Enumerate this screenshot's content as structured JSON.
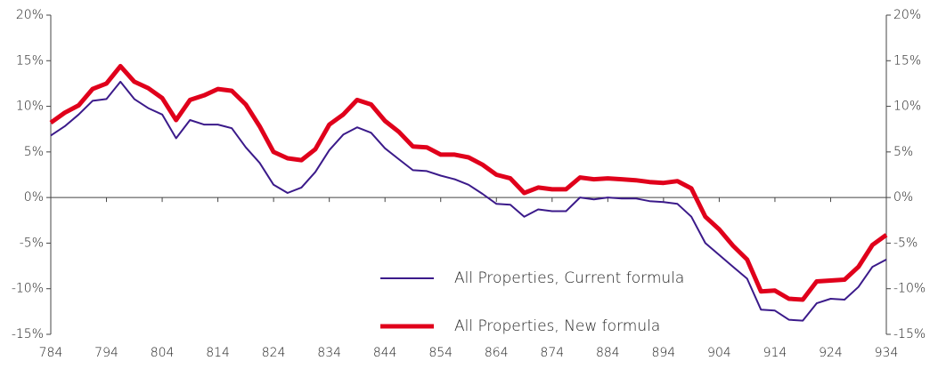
{
  "chart_data": {
    "type": "line",
    "x": [
      784,
      786.5,
      789,
      791.5,
      794,
      796.5,
      799,
      801.5,
      804,
      806.5,
      809,
      811.5,
      814,
      816.5,
      819,
      821.5,
      824,
      826.5,
      829,
      831.5,
      834,
      836.5,
      839,
      841.5,
      844,
      846.5,
      849,
      851.5,
      854,
      856.5,
      859,
      861.5,
      864,
      866.5,
      869,
      871.5,
      874,
      876.5,
      879,
      881.5,
      884,
      886.5,
      889,
      891.5,
      894,
      896.5,
      899,
      901.5,
      904,
      906.5,
      909,
      911.5,
      914,
      916.5,
      919,
      921.5,
      924,
      926.5,
      929,
      931.5,
      934
    ],
    "series": [
      {
        "name": "All Properties, Current formula",
        "color": "#3b1a8a",
        "values": [
          6.8,
          7.8,
          9.1,
          10.6,
          10.8,
          12.7,
          10.8,
          9.8,
          9.1,
          6.5,
          8.5,
          8.0,
          8.0,
          7.6,
          5.5,
          3.8,
          1.4,
          0.5,
          1.1,
          2.8,
          5.2,
          6.9,
          7.7,
          7.1,
          5.4,
          4.2,
          3.0,
          2.9,
          2.4,
          2.0,
          1.4,
          0.4,
          -0.7,
          -0.8,
          -2.1,
          -1.3,
          -1.5,
          -1.5,
          0.0,
          -0.2,
          0.0,
          -0.1,
          -0.1,
          -0.4,
          -0.5,
          -0.7,
          -2.1,
          -5.0,
          -6.3,
          -7.6,
          -8.9,
          -12.3,
          -12.4,
          -13.4,
          -13.5,
          -11.6,
          -11.1,
          -11.2,
          -9.8,
          -7.6,
          -6.8
        ]
      },
      {
        "name": "All Properties, New formula",
        "color": "#e0001b",
        "values": [
          8.2,
          9.3,
          10.1,
          11.9,
          12.5,
          14.4,
          12.7,
          12.0,
          10.9,
          8.5,
          10.7,
          11.2,
          11.9,
          11.7,
          10.2,
          7.8,
          5.0,
          4.3,
          4.1,
          5.3,
          8.0,
          9.1,
          10.7,
          10.2,
          8.4,
          7.2,
          5.6,
          5.5,
          4.7,
          4.7,
          4.4,
          3.6,
          2.5,
          2.1,
          0.5,
          1.1,
          0.9,
          0.9,
          2.2,
          2.0,
          2.1,
          2.0,
          1.9,
          1.7,
          1.6,
          1.8,
          1.0,
          -2.1,
          -3.5,
          -5.3,
          -6.8,
          -10.3,
          -10.2,
          -11.1,
          -11.2,
          -9.2,
          -9.1,
          -9.0,
          -7.6,
          -5.2,
          -4.1
        ]
      }
    ],
    "xlim": [
      784,
      934
    ],
    "xticks": [
      784,
      794,
      804,
      814,
      824,
      834,
      844,
      854,
      864,
      874,
      884,
      894,
      904,
      914,
      924,
      934
    ],
    "ylim": [
      -15,
      20
    ],
    "yticks": [
      {
        "value": -15,
        "label": "-15%"
      },
      {
        "value": -10,
        "label": "-10%"
      },
      {
        "value": -5,
        "label": "-5%"
      },
      {
        "value": 0,
        "label": "0%"
      },
      {
        "value": 5,
        "label": "5%"
      },
      {
        "value": 10,
        "label": "10%"
      },
      {
        "value": 15,
        "label": "15%"
      },
      {
        "value": 20,
        "label": "20%"
      }
    ],
    "y2lim": [
      -15,
      20
    ],
    "y2ticks": [
      {
        "value": -15,
        "label": "-15%"
      },
      {
        "value": -10,
        "label": "-10%"
      },
      {
        "value": -5,
        "label": "-5%"
      },
      {
        "value": 0,
        "label": "0%"
      },
      {
        "value": 5,
        "label": "5%"
      },
      {
        "value": 10,
        "label": "10%"
      },
      {
        "value": 15,
        "label": "15%"
      },
      {
        "value": 20,
        "label": "20%"
      }
    ],
    "grid": false
  }
}
